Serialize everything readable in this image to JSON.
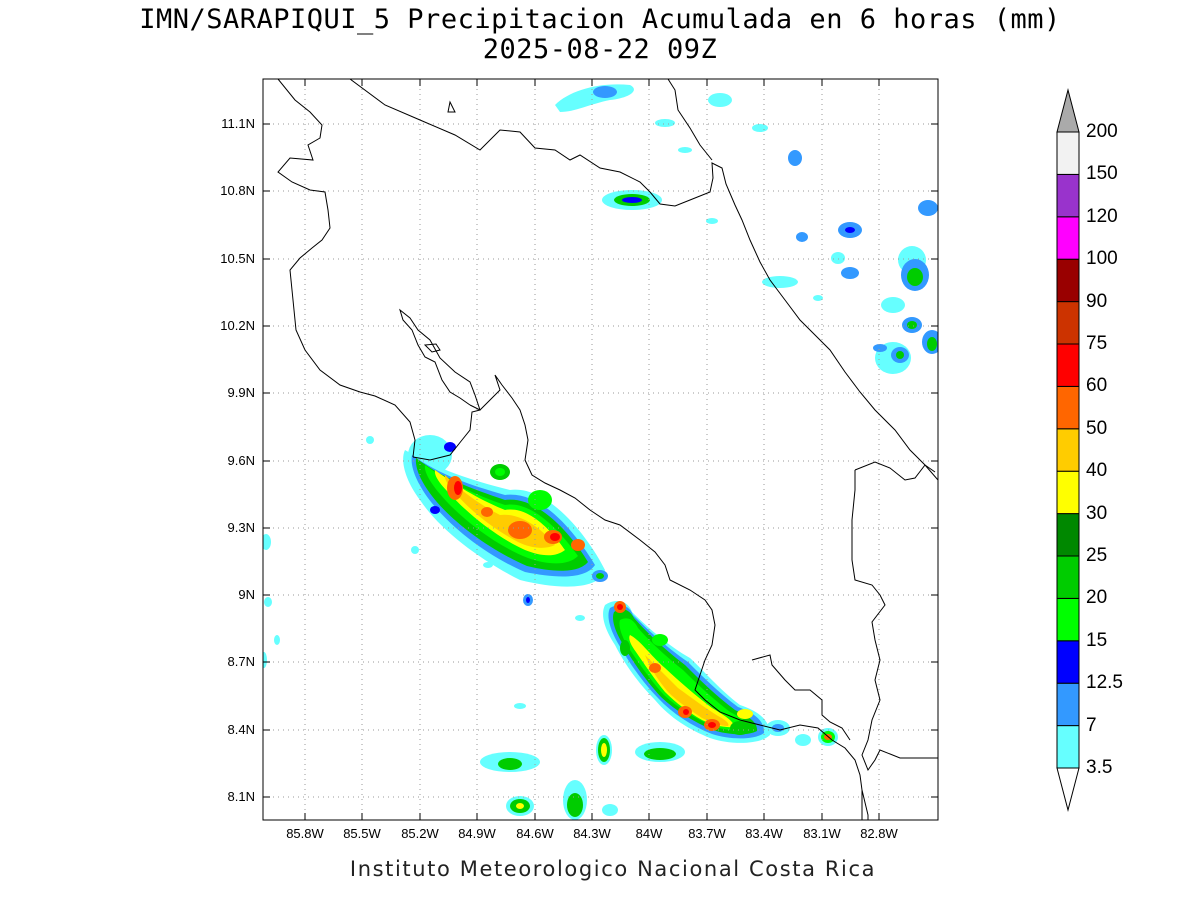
{
  "title": "IMN/SARAPIQUI_5 Precipitacion Acumulada en 6 horas (mm)",
  "subtitle": "2025-08-22 09Z",
  "footer": "Instituto Meteorologico Nacional Costa Rica",
  "axes": {
    "y_ticks": [
      "11.1N",
      "10.8N",
      "10.5N",
      "10.2N",
      "9.9N",
      "9.6N",
      "9.3N",
      "9N",
      "8.7N",
      "8.4N",
      "8.1N"
    ],
    "x_ticks": [
      "85.8W",
      "85.5W",
      "85.2W",
      "84.9W",
      "84.6W",
      "84.3W",
      "84W",
      "83.7W",
      "83.4W",
      "83.1W",
      "82.8W"
    ]
  },
  "colorbar": {
    "levels": [
      "3.5",
      "7",
      "12.5",
      "15",
      "20",
      "25",
      "30",
      "40",
      "50",
      "60",
      "75",
      "90",
      "100",
      "120",
      "150",
      "200"
    ],
    "colors": [
      "#ffffff",
      "#66ffff",
      "#3399ff",
      "#0000ff",
      "#00ff00",
      "#00cc00",
      "#008800",
      "#ffff00",
      "#ffcc00",
      "#ff6600",
      "#ff0000",
      "#cc3300",
      "#990000",
      "#ff00ff",
      "#9933cc",
      "#f2f2f2",
      "#aaaaaa"
    ]
  },
  "map_colors": {
    "c1": "#66ffff",
    "c2": "#3399ff",
    "c3": "#0000ff",
    "c4": "#00ff00",
    "c5": "#00cc00",
    "c6": "#008800",
    "c7": "#ffff00",
    "c8": "#ffcc00",
    "c9": "#ff6600",
    "c10": "#ff0000",
    "coast": "#000000",
    "grid": "#9a9a9a"
  }
}
